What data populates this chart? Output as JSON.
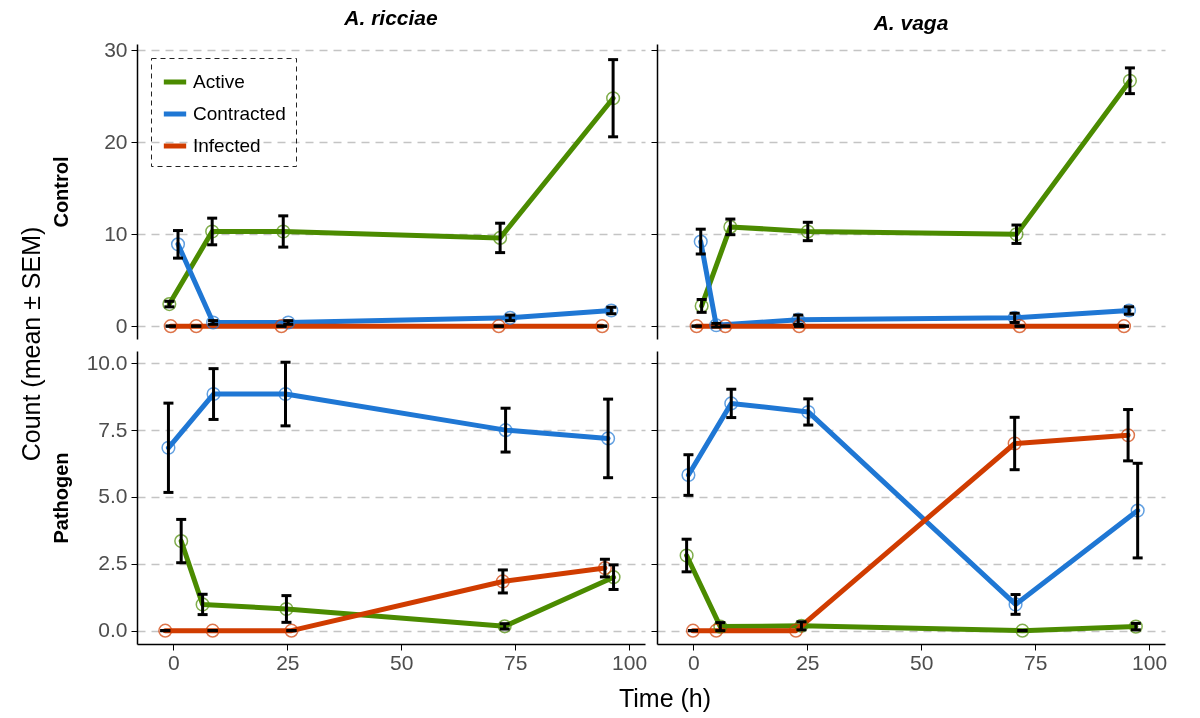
{
  "chart_data": [
    {
      "type": "line",
      "title": "A. ricciae",
      "ylabel": "Control",
      "annotations": [
        "Count (mean ± SEM)",
        "Time (h)"
      ],
      "xlim": [
        -8,
        103.5
      ],
      "ylim": [
        -1.4,
        30.7
      ],
      "yticks": [
        0,
        10,
        20,
        30
      ],
      "tick_labels": "y",
      "grid": "y",
      "legend": "top left",
      "marker": "circle",
      "line_style": "solid",
      "series": [
        {
          "name": "Active",
          "color": "#4b8b00",
          "x": [
            -0.9,
            8.5,
            24.1,
            71.7,
            96.5
          ],
          "values": [
            2.4,
            10.3,
            10.3,
            9.6,
            24.8
          ],
          "errors": [
            0.3,
            1.45,
            1.7,
            1.6,
            4.2
          ]
        },
        {
          "name": "Contracted",
          "color": "#1f77d4",
          "x": [
            1.0,
            8.7,
            25.2,
            73.9,
            96.1
          ],
          "values": [
            8.9,
            0.4,
            0.4,
            0.9,
            1.7
          ],
          "errors": [
            1.5,
            0.2,
            0.2,
            0.3,
            0.35
          ]
        },
        {
          "name": "Infected",
          "color": "#d03c00",
          "x": [
            -0.6,
            5.0,
            23.7,
            71.4,
            94.1
          ],
          "values": [
            0,
            0,
            0,
            0,
            0
          ],
          "errors": [
            0,
            0,
            0,
            0,
            0
          ]
        }
      ]
    },
    {
      "type": "line",
      "title": "A. vaga",
      "xlim": [
        -8,
        103.5
      ],
      "ylim": [
        -1.4,
        30.7
      ],
      "yticks": [
        0,
        10,
        20,
        30
      ],
      "tick_labels": false,
      "grid": "y",
      "marker": "circle",
      "line_style": "solid",
      "series": [
        {
          "color": "#4b8b00",
          "x": [
            1.8,
            8.1,
            25.1,
            70.9,
            95.8
          ],
          "values": [
            2.2,
            10.8,
            10.3,
            10.0,
            26.7
          ],
          "errors": [
            0.7,
            0.85,
            1.0,
            1.0,
            1.4
          ]
        },
        {
          "color": "#1f77d4",
          "x": [
            1.6,
            5.0,
            23.0,
            70.5,
            95.6
          ],
          "values": [
            9.2,
            0.1,
            0.7,
            0.9,
            1.7
          ],
          "errors": [
            1.35,
            0.2,
            0.5,
            0.5,
            0.4
          ]
        },
        {
          "color": "#d03c00",
          "x": [
            0.7,
            7.0,
            23.2,
            71.6,
            94.5
          ],
          "values": [
            0,
            0,
            0,
            0,
            0
          ],
          "errors": [
            0,
            0,
            0,
            0,
            0
          ]
        }
      ]
    },
    {
      "type": "line",
      "ylabel": "Pathogen",
      "xlim": [
        -8,
        103.5
      ],
      "ylim": [
        -0.5,
        10.46
      ],
      "xticks": [
        0,
        25,
        50,
        75,
        100
      ],
      "yticks": [
        {
          "value": 0,
          "label": "0.0"
        },
        {
          "value": 2.5,
          "label": "2.5"
        },
        {
          "value": 5,
          "label": "5.0"
        },
        {
          "value": 7.5,
          "label": "7.5"
        },
        {
          "value": 10,
          "label": "10.0"
        }
      ],
      "grid": "y",
      "marker": "circle",
      "line_style": "solid",
      "series": [
        {
          "color": "#4b8b00",
          "x": [
            1.7,
            6.4,
            24.8,
            72.7,
            96.6
          ],
          "values": [
            3.35,
            0.98,
            0.81,
            0.16,
            2.0
          ],
          "errors": [
            0.81,
            0.38,
            0.5,
            0.1,
            0.46
          ]
        },
        {
          "color": "#1f77d4",
          "x": [
            -1.1,
            8.8,
            24.6,
            72.9,
            95.4
          ],
          "values": [
            6.84,
            8.85,
            8.85,
            7.5,
            7.19
          ],
          "errors": [
            1.67,
            0.95,
            1.19,
            0.82,
            1.47
          ]
        },
        {
          "color": "#d03c00",
          "x": [
            -1.8,
            8.6,
            25.9,
            72.3,
            94.7
          ],
          "values": [
            0,
            0,
            0,
            1.84,
            2.34
          ],
          "errors": [
            0,
            0,
            0,
            0.43,
            0.33
          ]
        }
      ]
    },
    {
      "type": "line",
      "xlim": [
        -8,
        103.5
      ],
      "ylim": [
        -0.5,
        10.46
      ],
      "xticks": [
        0,
        25,
        50,
        75,
        100
      ],
      "yticks": [
        0,
        2.5,
        5,
        7.5,
        10
      ],
      "tick_labels": "x",
      "grid": "y",
      "marker": "circle",
      "line_style": "solid",
      "series": [
        {
          "color": "#4b8b00",
          "x": [
            -1.5,
            5.9,
            23.7,
            72.2,
            97.1
          ],
          "values": [
            2.81,
            0.15,
            0.18,
            0,
            0.15
          ],
          "errors": [
            0.61,
            0.15,
            0.15,
            0,
            0.12
          ]
        },
        {
          "color": "#1f77d4",
          "x": [
            -1.1,
            8.3,
            25.2,
            70.7,
            97.5
          ],
          "values": [
            5.82,
            8.5,
            8.18,
            0.98,
            4.49
          ],
          "errors": [
            0.76,
            0.53,
            0.49,
            0.37,
            1.77
          ]
        },
        {
          "color": "#d03c00",
          "x": [
            -0.1,
            5.0,
            22.5,
            70.5,
            95.4
          ],
          "values": [
            0,
            0,
            0,
            7.0,
            7.31
          ],
          "errors": [
            0,
            null,
            null,
            0.98,
            0.96
          ]
        }
      ]
    }
  ]
}
